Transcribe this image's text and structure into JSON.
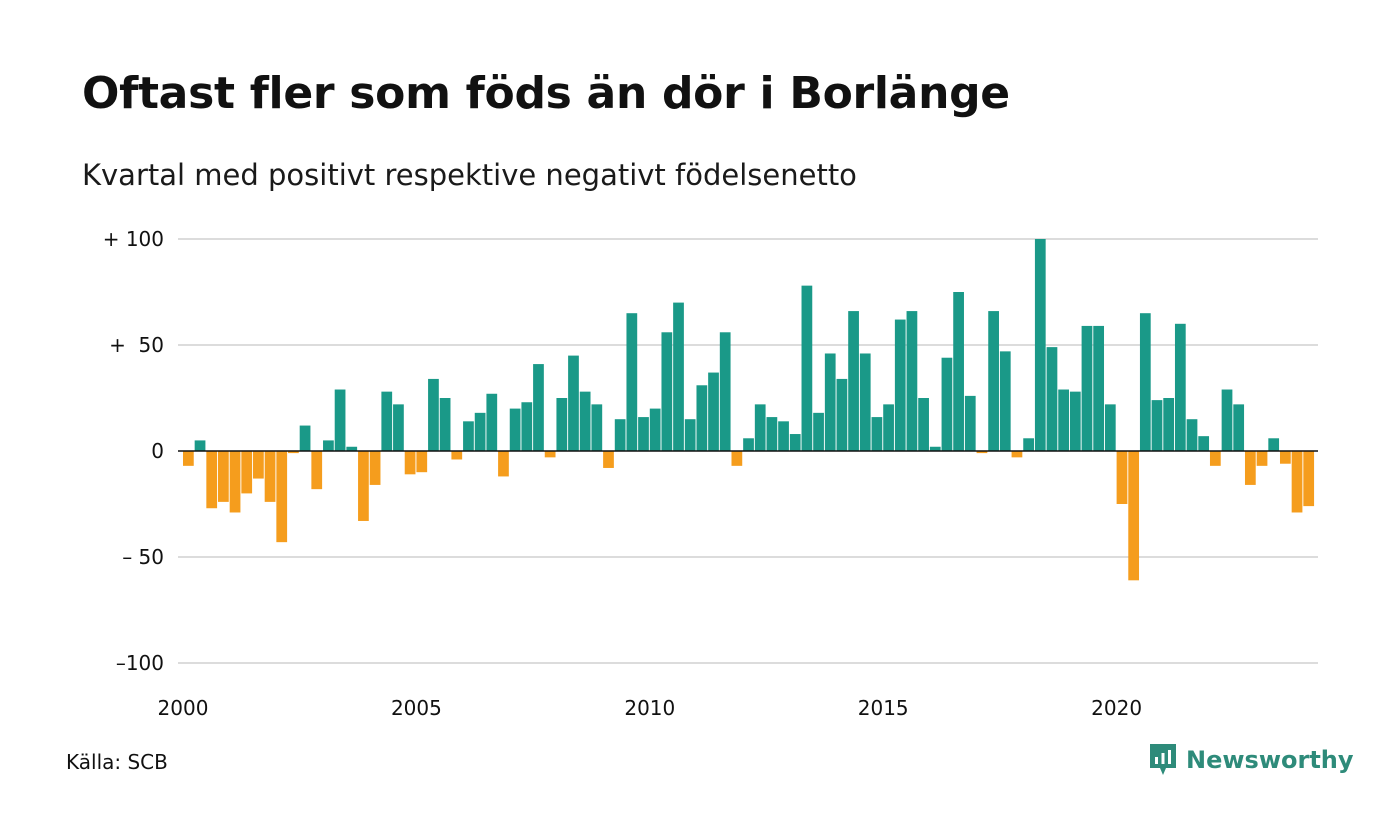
{
  "header": {
    "title": "Oftast fler som föds än dör i Borlänge",
    "subtitle": "Kvartal med positivt respektive negativt födelsenetto"
  },
  "footer": {
    "source": "Källa: SCB",
    "brand": "Newsworthy"
  },
  "colors": {
    "positive": "#1a9988",
    "negative": "#f59d1d",
    "grid": "#dcdcdc",
    "brand": "#2e8b7a"
  },
  "chart_data": {
    "type": "bar",
    "title": "Oftast fler som föds än dör i Borlänge",
    "subtitle": "Kvartal med positivt respektive negativt födelsenetto",
    "xlabel": "",
    "ylabel": "",
    "ylim": [
      -100,
      100
    ],
    "y_ticks": [
      100,
      50,
      0,
      -50,
      -100
    ],
    "y_tick_labels": [
      "+ 100",
      "+  50",
      "0",
      "– 50",
      "–100"
    ],
    "x_ticks": [
      2000,
      2005,
      2010,
      2015,
      2020
    ],
    "x_tick_labels": [
      "2000",
      "2005",
      "2010",
      "2015",
      "2020"
    ],
    "grid": true,
    "start_year": 2000,
    "bars_per_year": 4,
    "values": [
      -7,
      5,
      -27,
      -24,
      -29,
      -20,
      -13,
      -24,
      -43,
      -1,
      12,
      -18,
      5,
      29,
      2,
      -33,
      -16,
      28,
      22,
      -11,
      -10,
      34,
      25,
      -4,
      14,
      18,
      27,
      -12,
      20,
      23,
      41,
      -3,
      25,
      45,
      28,
      22,
      -8,
      15,
      65,
      16,
      20,
      56,
      70,
      15,
      31,
      37,
      56,
      -7,
      6,
      22,
      16,
      14,
      8,
      78,
      18,
      46,
      34,
      66,
      46,
      16,
      22,
      62,
      66,
      25,
      2,
      44,
      75,
      26,
      -1,
      66,
      47,
      -3,
      6,
      100,
      49,
      29,
      28,
      59,
      59,
      22,
      -25,
      -61,
      65,
      24,
      25,
      60,
      15,
      7,
      -7,
      29,
      22,
      -16,
      -7,
      6,
      -6,
      -29,
      -26
    ]
  }
}
